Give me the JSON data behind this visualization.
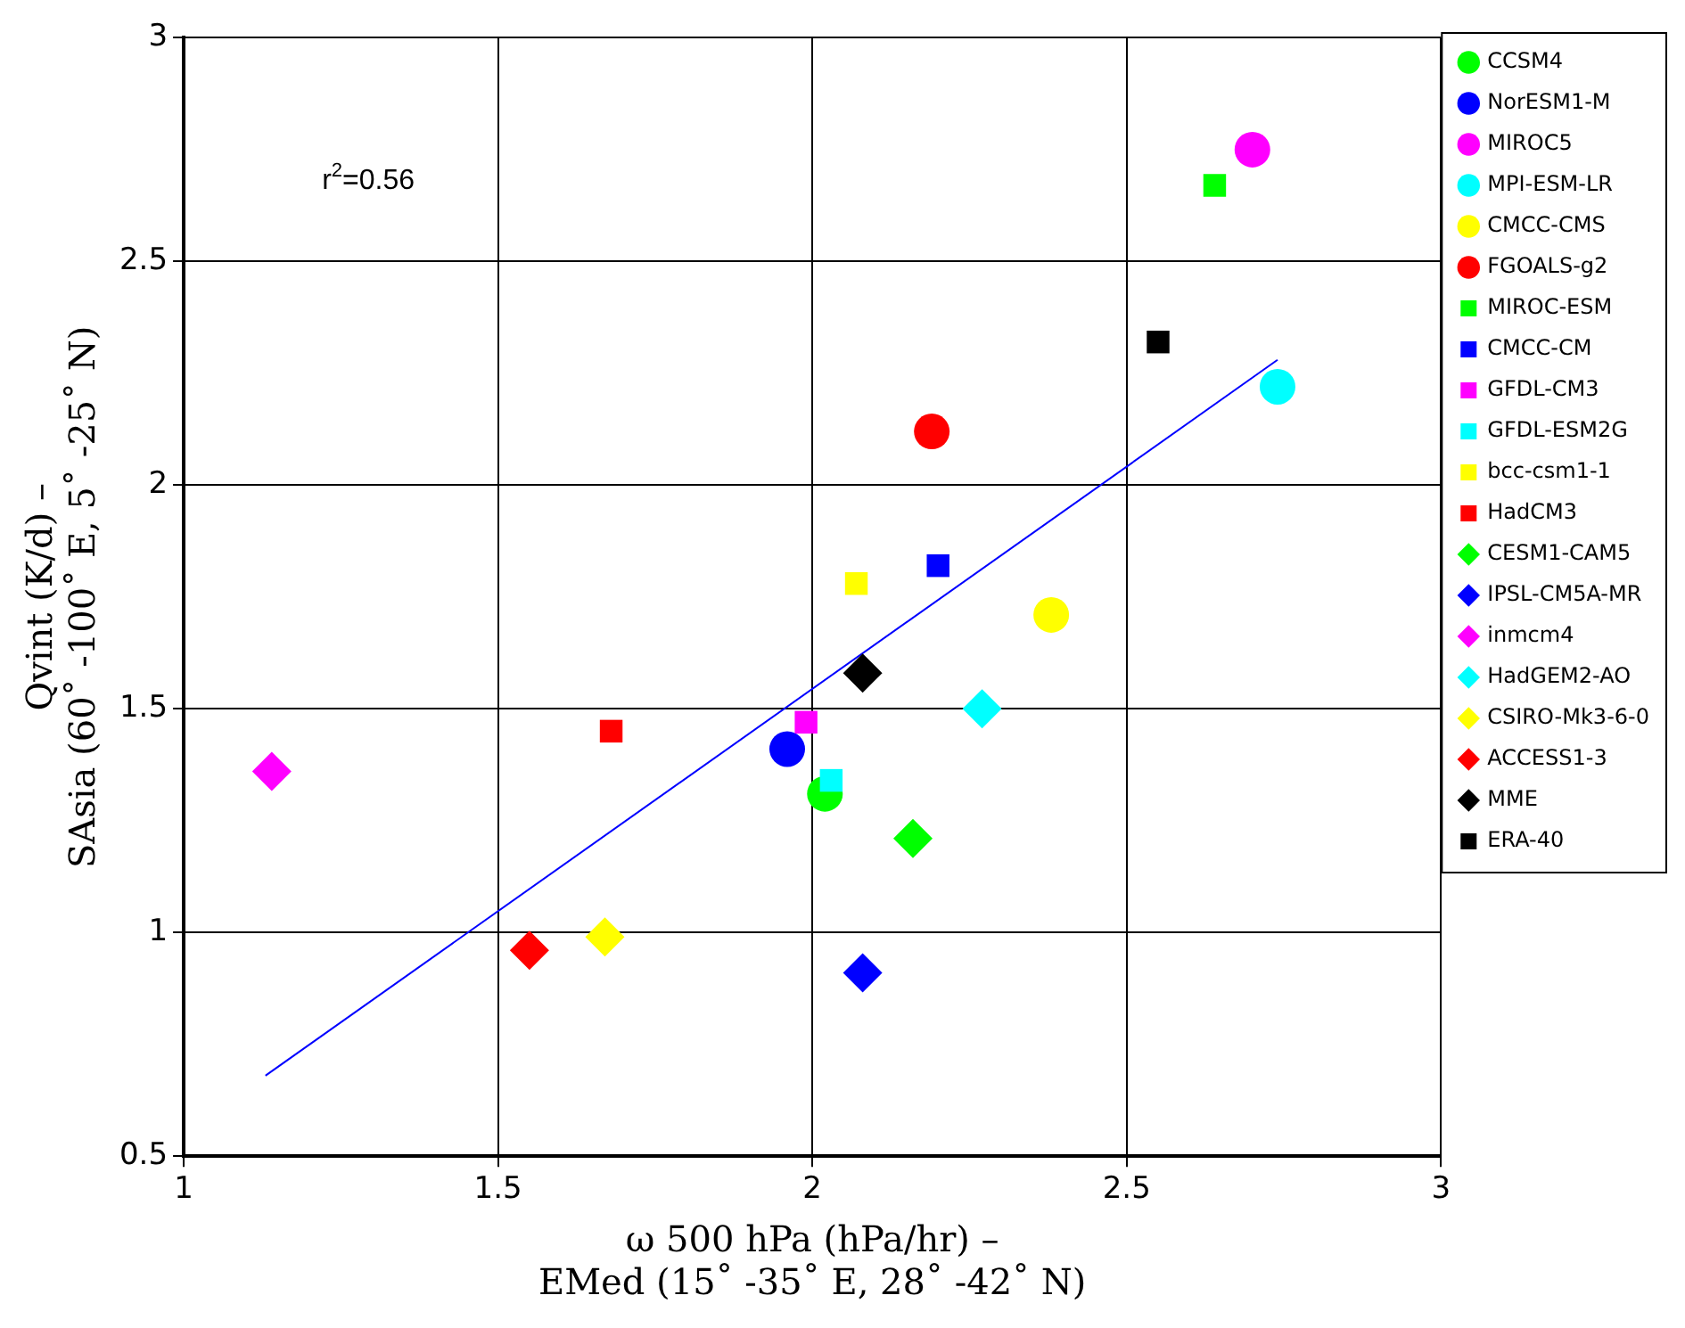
{
  "chart_data": {
    "type": "scatter",
    "xlabel": "ω 500 hPa (hPa/hr) –\nEMed (15˚ -35˚ E, 28˚ -42˚ N)",
    "ylabel": "Qvint (K/d) –\nSAsia (60˚ -100˚ E, 5˚ -25˚ N)",
    "annotations": [
      "r$^{2}$=0.56"
    ],
    "xlim": [
      1,
      3
    ],
    "xticks": [
      1,
      1.5,
      2,
      2.5,
      3
    ],
    "ylim": [
      0.5,
      3
    ],
    "yticks": [
      0.5,
      1,
      1.5,
      2,
      2.5,
      3
    ],
    "grid": true,
    "legend": "right",
    "series": [
      {
        "name": "CCSM4",
        "color": "#00ff00",
        "marker": "circle",
        "x": [
          2.02
        ],
        "values": [
          1.31
        ]
      },
      {
        "name": "NorESM1-M",
        "color": "#0000ff",
        "marker": "circle",
        "x": [
          1.96
        ],
        "values": [
          1.41
        ]
      },
      {
        "name": "MIROC5",
        "color": "#ff00ff",
        "marker": "circle",
        "x": [
          2.7
        ],
        "values": [
          2.75
        ]
      },
      {
        "name": "MPI-ESM-LR",
        "color": "#00ffff",
        "marker": "circle",
        "x": [
          2.74
        ],
        "values": [
          2.22
        ]
      },
      {
        "name": "CMCC-CMS",
        "color": "#ffff00",
        "marker": "circle",
        "x": [
          2.38
        ],
        "values": [
          1.71
        ]
      },
      {
        "name": "FGOALS-g2",
        "color": "#ff0000",
        "marker": "circle",
        "x": [
          2.19
        ],
        "values": [
          2.12
        ]
      },
      {
        "name": "MIROC-ESM",
        "color": "#00ff00",
        "marker": "square",
        "x": [
          2.64
        ],
        "values": [
          2.67
        ]
      },
      {
        "name": "CMCC-CM",
        "color": "#0000ff",
        "marker": "square",
        "x": [
          2.2
        ],
        "values": [
          1.82
        ]
      },
      {
        "name": "GFDL-CM3",
        "color": "#ff00ff",
        "marker": "square",
        "x": [
          1.99
        ],
        "values": [
          1.47
        ]
      },
      {
        "name": "GFDL-ESM2G",
        "color": "#00ffff",
        "marker": "square",
        "x": [
          2.03
        ],
        "values": [
          1.34
        ]
      },
      {
        "name": "bcc-csm1-1",
        "color": "#ffff00",
        "marker": "square",
        "x": [
          2.07
        ],
        "values": [
          1.78
        ]
      },
      {
        "name": "HadCM3",
        "color": "#ff0000",
        "marker": "square",
        "x": [
          1.68
        ],
        "values": [
          1.45
        ]
      },
      {
        "name": "CESM1-CAM5",
        "color": "#00ff00",
        "marker": "diamond",
        "x": [
          2.16
        ],
        "values": [
          1.21
        ]
      },
      {
        "name": "IPSL-CM5A-MR",
        "color": "#0000ff",
        "marker": "diamond",
        "x": [
          2.08
        ],
        "values": [
          0.91
        ]
      },
      {
        "name": "inmcm4",
        "color": "#ff00ff",
        "marker": "diamond",
        "x": [
          1.14
        ],
        "values": [
          1.36
        ]
      },
      {
        "name": "HadGEM2-AO",
        "color": "#00ffff",
        "marker": "diamond",
        "x": [
          2.27
        ],
        "values": [
          1.5
        ]
      },
      {
        "name": "CSIRO-Mk3-6-0",
        "color": "#ffff00",
        "marker": "diamond",
        "x": [
          1.67
        ],
        "values": [
          0.99
        ]
      },
      {
        "name": "ACCESS1-3",
        "color": "#ff0000",
        "marker": "diamond",
        "x": [
          1.55
        ],
        "values": [
          0.96
        ]
      },
      {
        "name": "MME",
        "color": "#000000",
        "marker": "diamond",
        "x": [
          2.08
        ],
        "values": [
          1.58
        ]
      },
      {
        "name": "ERA-40",
        "color": "#000000",
        "marker": "square",
        "x": [
          2.55
        ],
        "values": [
          2.32
        ]
      },
      {
        "type": "line",
        "color": "#0000ff",
        "marker": "none",
        "x": [
          1.13,
          2.74
        ],
        "values": [
          0.68,
          2.28
        ]
      }
    ]
  }
}
